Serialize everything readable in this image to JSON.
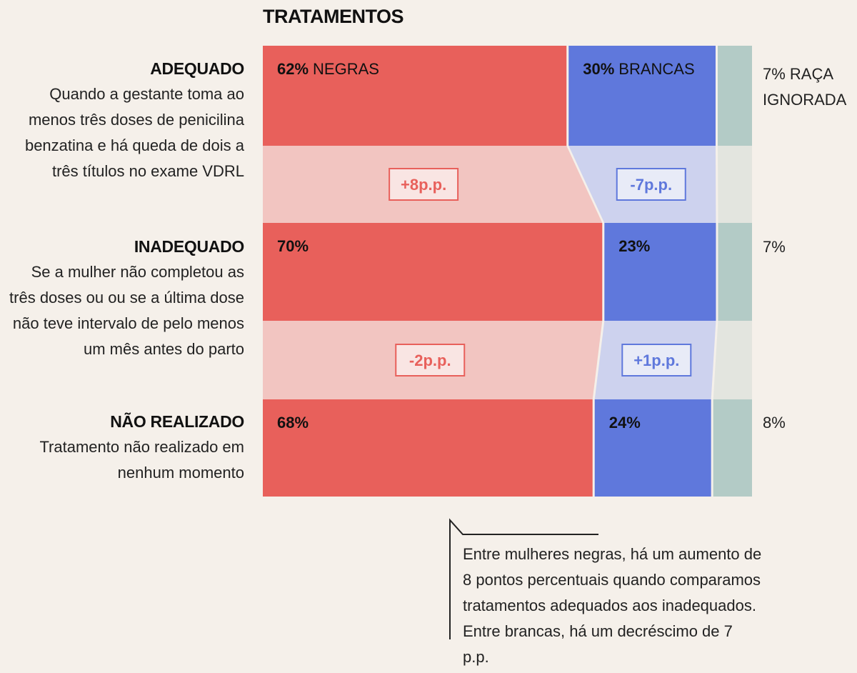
{
  "title": "TRATAMENTOS",
  "categories": [
    {
      "name": "ADEQUADO",
      "description": "Quando a gestante toma ao menos três doses de penicilina benzatina e há queda de dois a três títulos no exame VDRL"
    },
    {
      "name": "INADEQUADO",
      "description": "Se a mulher não completou as três doses ou ou se a última dose não teve intervalo de pelo menos um mês antes do parto"
    },
    {
      "name": "NÃO REALIZADO",
      "description": "Tratamento não realizado em nenhum momento"
    }
  ],
  "chart_data": {
    "type": "bar",
    "stacked": true,
    "orientation": "horizontal",
    "title": "TRATAMENTOS",
    "categories": [
      "ADEQUADO",
      "INADEQUADO",
      "NÃO REALIZADO"
    ],
    "series": [
      {
        "name": "NEGRAS",
        "values": [
          62,
          70,
          68
        ],
        "color": "#e8605b"
      },
      {
        "name": "BRANCAS",
        "values": [
          30,
          23,
          24
        ],
        "color": "#5f78dc"
      },
      {
        "name": "RAÇA IGNORADA",
        "values": [
          7,
          7,
          8
        ],
        "color": "#b3cbc6"
      }
    ],
    "value_labels": [
      [
        "62%",
        "30%",
        "7% RAÇA IGNORADA"
      ],
      [
        "70%",
        "23%",
        "7%"
      ],
      [
        "68%",
        "24%",
        "8%"
      ]
    ],
    "series_labels_first_row": [
      "NEGRAS",
      "BRANCAS"
    ],
    "differences": [
      {
        "negras": "+8p.p.",
        "brancas": "-7p.p."
      },
      {
        "negras": "-2p.p.",
        "brancas": "+1p.p."
      }
    ]
  },
  "side_labels": [
    "7% RAÇA",
    "IGNORADA",
    "7%",
    "8%"
  ],
  "note": "Entre mulheres negras, há um aumento de 8 pontos percentuais quando comparamos tratamentos adequados aos inadequados. Entre brancas, há um decréscimo de 7 p.p.",
  "colors": {
    "negras": "#e8605b",
    "brancas": "#5f78dc",
    "ignorada": "#b3cbc6",
    "negras_band": "#f2c5c1",
    "brancas_band": "#cdd2ee",
    "ignorada_band": "#e3e5df"
  }
}
